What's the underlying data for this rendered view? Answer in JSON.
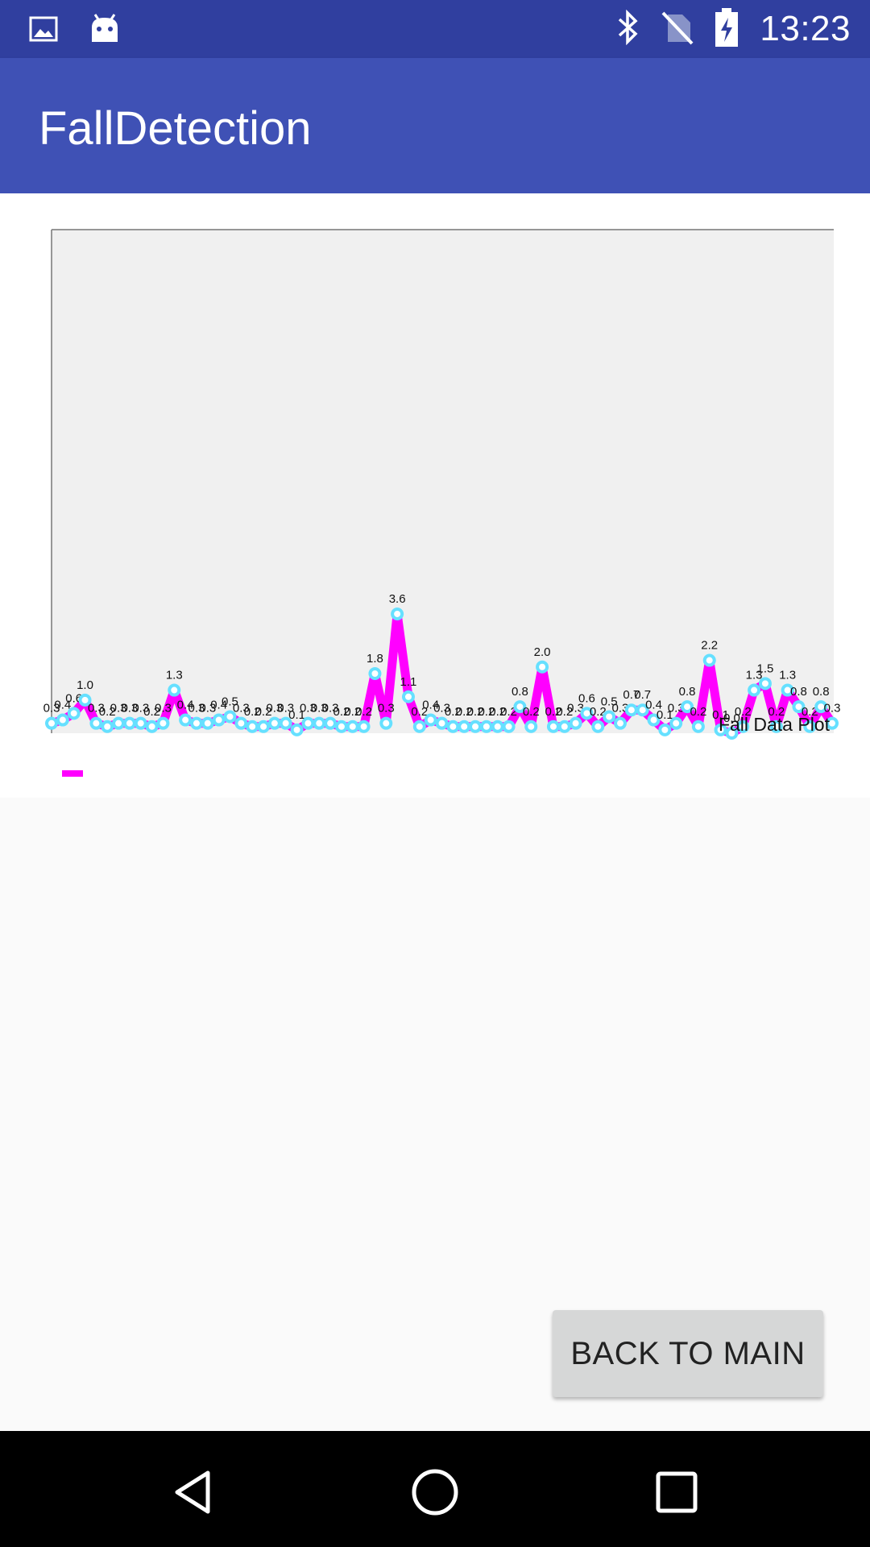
{
  "status_bar": {
    "time": "13:23",
    "left_icons": [
      "image-icon",
      "android-icon"
    ],
    "right_icons": [
      "bluetooth-icon",
      "no-sim-icon",
      "battery-charging-icon"
    ]
  },
  "app_bar": {
    "title": "FallDetection"
  },
  "chart_data": {
    "type": "line",
    "title": "",
    "xlabel": "",
    "ylabel": "",
    "ylim": [
      0,
      15.2
    ],
    "grid": false,
    "legend_position": "bottom-left",
    "annotation": "Fall Data Plot",
    "line_color": "#ff00ff",
    "point_color": "#66e0ff",
    "plot_background": "#f0f0f0",
    "series": [
      {
        "values": [
          0.3,
          0.4,
          0.6,
          1.0,
          0.3,
          0.2,
          0.3,
          0.3,
          0.3,
          0.2,
          0.3,
          1.3,
          0.4,
          0.3,
          0.3,
          0.4,
          0.5,
          0.3,
          0.2,
          0.2,
          0.3,
          0.3,
          0.1,
          0.3,
          0.3,
          0.3,
          0.2,
          0.2,
          0.2,
          1.8,
          0.3,
          3.6,
          1.1,
          0.2,
          0.4,
          0.3,
          0.2,
          0.2,
          0.2,
          0.2,
          0.2,
          0.2,
          0.8,
          0.2,
          2.0,
          0.2,
          0.2,
          0.3,
          0.6,
          0.2,
          0.5,
          0.3,
          0.7,
          0.7,
          0.4,
          0.1,
          0.3,
          0.8,
          0.2,
          2.2,
          0.1,
          0.0,
          0.2,
          1.3,
          1.5,
          0.2,
          1.3,
          0.8,
          0.2,
          0.8,
          0.3
        ]
      }
    ]
  },
  "buttons": {
    "back_to_main": "BACK TO MAIN"
  },
  "nav_bar": {
    "icons": [
      "back-icon",
      "home-icon",
      "recents-icon"
    ]
  }
}
